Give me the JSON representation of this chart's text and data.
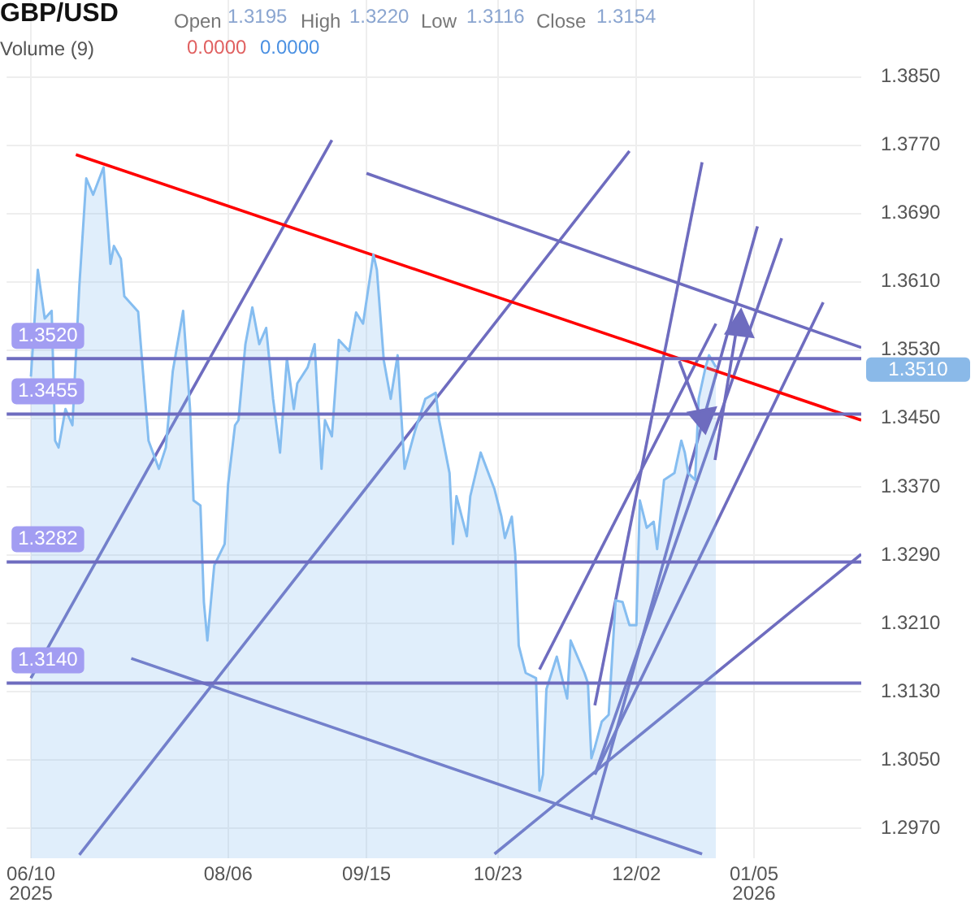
{
  "chart_data": {
    "type": "area",
    "title": "GBP/USD",
    "annotations": [
      "Open",
      "1.3195",
      "High",
      "1.3220",
      "Low",
      "1.3116",
      "Close",
      "1.3154",
      "Volume (9)",
      "0.0000",
      "0.0000",
      "1.3510"
    ],
    "xlim": [
      "2025-06-03",
      "2026-02-05"
    ],
    "xticks": [
      {
        "value": "2025-06-10",
        "label": "06/10\n2025"
      },
      {
        "value": "2025-08-06",
        "label": "08/06"
      },
      {
        "value": "2025-09-15",
        "label": "09/15"
      },
      {
        "value": "2025-10-23",
        "label": "10/23"
      },
      {
        "value": "2025-12-02",
        "label": "12/02"
      },
      {
        "value": "2026-01-05",
        "label": "01/05\n2026"
      }
    ],
    "ylim": [
      1.2935,
      1.394
    ],
    "yticks": [
      {
        "value": 1.297,
        "label": "1.2970"
      },
      {
        "value": 1.305,
        "label": "1.3050"
      },
      {
        "value": 1.313,
        "label": "1.3130"
      },
      {
        "value": 1.321,
        "label": "1.3210"
      },
      {
        "value": 1.329,
        "label": "1.3290"
      },
      {
        "value": 1.337,
        "label": "1.3370"
      },
      {
        "value": 1.345,
        "label": "1.3450"
      },
      {
        "value": 1.353,
        "label": "1.3530"
      },
      {
        "value": 1.361,
        "label": "1.3610"
      },
      {
        "value": 1.369,
        "label": "1.3690"
      },
      {
        "value": 1.377,
        "label": "1.3770"
      },
      {
        "value": 1.385,
        "label": "1.3850"
      }
    ],
    "grid": true,
    "legend": false,
    "ref_lines": [
      {
        "axis": "y",
        "value": 1.352,
        "label": "1.3520",
        "color": "#6e6cbf"
      },
      {
        "axis": "y",
        "value": 1.3455,
        "label": "1.3455",
        "color": "#6e6cbf"
      },
      {
        "axis": "y",
        "value": 1.3282,
        "label": "1.3282",
        "color": "#6e6cbf"
      },
      {
        "axis": "y",
        "value": 1.314,
        "label": "1.3140",
        "color": "#6e6cbf"
      }
    ],
    "series": [
      {
        "type": "area",
        "color": "#85bdf0",
        "x": [
          "2025-06-10",
          "2025-06-12",
          "2025-06-14",
          "2025-06-16",
          "2025-06-17",
          "2025-06-18",
          "2025-06-20",
          "2025-06-22",
          "2025-06-24",
          "2025-06-26",
          "2025-06-28",
          "2025-07-01",
          "2025-07-03",
          "2025-07-04",
          "2025-07-06",
          "2025-07-07",
          "2025-07-11",
          "2025-07-14",
          "2025-07-17",
          "2025-07-19",
          "2025-07-21",
          "2025-07-24",
          "2025-07-26",
          "2025-07-27",
          "2025-07-29",
          "2025-07-30",
          "2025-07-31",
          "2025-08-02",
          "2025-08-05",
          "2025-08-06",
          "2025-08-08",
          "2025-08-09",
          "2025-08-11",
          "2025-08-13",
          "2025-08-15",
          "2025-08-17",
          "2025-08-19",
          "2025-08-21",
          "2025-08-23",
          "2025-08-25",
          "2025-08-26",
          "2025-08-29",
          "2025-08-31",
          "2025-09-02",
          "2025-09-03",
          "2025-09-05",
          "2025-09-07",
          "2025-09-10",
          "2025-09-12",
          "2025-09-14",
          "2025-09-17",
          "2025-09-18",
          "2025-09-20",
          "2025-09-22",
          "2025-09-24",
          "2025-09-26",
          "2025-09-29",
          "2025-10-02",
          "2025-10-05",
          "2025-10-06",
          "2025-10-09",
          "2025-10-10",
          "2025-10-11",
          "2025-10-14",
          "2025-10-15",
          "2025-10-18",
          "2025-10-22",
          "2025-10-24",
          "2025-10-25",
          "2025-10-27",
          "2025-10-28",
          "2025-10-29",
          "2025-10-31",
          "2025-11-03",
          "2025-11-04",
          "2025-11-05",
          "2025-11-06",
          "2025-11-09",
          "2025-11-12",
          "2025-11-13",
          "2025-11-17",
          "2025-11-18",
          "2025-11-19",
          "2025-11-20",
          "2025-11-22",
          "2025-11-24",
          "2025-11-26",
          "2025-11-28",
          "2025-11-30",
          "2025-12-02",
          "2025-12-03",
          "2025-12-05",
          "2025-12-07",
          "2025-12-08",
          "2025-12-10",
          "2025-12-13",
          "2025-12-15",
          "2025-12-16",
          "2025-12-17",
          "2025-12-19",
          "2025-12-20",
          "2025-12-22",
          "2025-12-23",
          "2025-12-25"
        ],
        "values": [
          1.3499,
          1.3624,
          1.3567,
          1.3576,
          1.3424,
          1.3416,
          1.3461,
          1.3442,
          1.3605,
          1.3731,
          1.3712,
          1.3744,
          1.3631,
          1.3652,
          1.3637,
          1.3593,
          1.3575,
          1.3424,
          1.3391,
          1.3416,
          1.3505,
          1.3576,
          1.3461,
          1.3354,
          1.3348,
          1.3235,
          1.319,
          1.3278,
          1.3303,
          1.3373,
          1.3442,
          1.3448,
          1.3537,
          1.358,
          1.3537,
          1.3556,
          1.3473,
          1.341,
          1.352,
          1.3461,
          1.3491,
          1.351,
          1.3537,
          1.3391,
          1.3448,
          1.3429,
          1.3542,
          1.3529,
          1.3574,
          1.3561,
          1.3642,
          1.3624,
          1.3518,
          1.3473,
          1.3524,
          1.3391,
          1.3435,
          1.3473,
          1.348,
          1.3448,
          1.3386,
          1.3303,
          1.3359,
          1.3312,
          1.3359,
          1.341,
          1.3367,
          1.3335,
          1.331,
          1.3335,
          1.3291,
          1.3184,
          1.3152,
          1.3146,
          1.3014,
          1.3033,
          1.3133,
          1.3171,
          1.3122,
          1.319,
          1.3152,
          1.314,
          1.3052,
          1.3065,
          1.3095,
          1.3103,
          1.3237,
          1.3235,
          1.3208,
          1.3208,
          1.3354,
          1.3322,
          1.3329,
          1.3297,
          1.3378,
          1.3386,
          1.3424,
          1.341,
          1.3386,
          1.3378,
          1.3473,
          1.351,
          1.3524,
          1.351
        ]
      },
      {
        "type": "line",
        "color": "#ff0000",
        "x": [
          "2025-06-23",
          "2026-02-05"
        ],
        "values": [
          1.3759,
          1.3448
        ]
      },
      {
        "type": "line",
        "color": "#6e6cbf",
        "x": [
          "2025-06-10",
          "2025-09-05"
        ],
        "values": [
          1.3146,
          1.3776
        ]
      },
      {
        "type": "line",
        "color": "#6e6cbf",
        "x": [
          "2025-06-24",
          "2025-11-30"
        ],
        "values": [
          1.2939,
          1.3763
        ]
      },
      {
        "type": "line",
        "color": "#6e6cbf",
        "x": [
          "2025-09-15",
          "2026-02-05"
        ],
        "values": [
          1.3737,
          1.3533
        ]
      },
      {
        "type": "line",
        "color": "#6e6cbf",
        "x": [
          "2025-07-09",
          "2025-12-21"
        ],
        "values": [
          1.3169,
          1.294
        ]
      },
      {
        "type": "line",
        "color": "#6e6cbf",
        "x": [
          "2025-10-22",
          "2026-02-05"
        ],
        "values": [
          1.294,
          1.3291
        ]
      },
      {
        "type": "line",
        "color": "#6e6cbf",
        "x": [
          "2025-11-04",
          "2025-12-25"
        ],
        "values": [
          1.3156,
          1.3561
        ]
      },
      {
        "type": "line",
        "color": "#6e6cbf",
        "x": [
          "2025-11-20",
          "2025-12-21"
        ],
        "values": [
          1.3114,
          1.375
        ]
      },
      {
        "type": "line",
        "color": "#6e6cbf",
        "x": [
          "2025-11-19",
          "2026-01-06"
        ],
        "values": [
          1.298,
          1.3675
        ]
      },
      {
        "type": "line",
        "color": "#6e6cbf",
        "x": [
          "2025-11-20",
          "2026-01-13"
        ],
        "values": [
          1.3033,
          1.3661
        ]
      },
      {
        "type": "line",
        "color": "#6e6cbf",
        "x": [
          "2025-11-20",
          "2026-01-25"
        ],
        "values": [
          1.3033,
          1.3586
        ]
      }
    ]
  }
}
